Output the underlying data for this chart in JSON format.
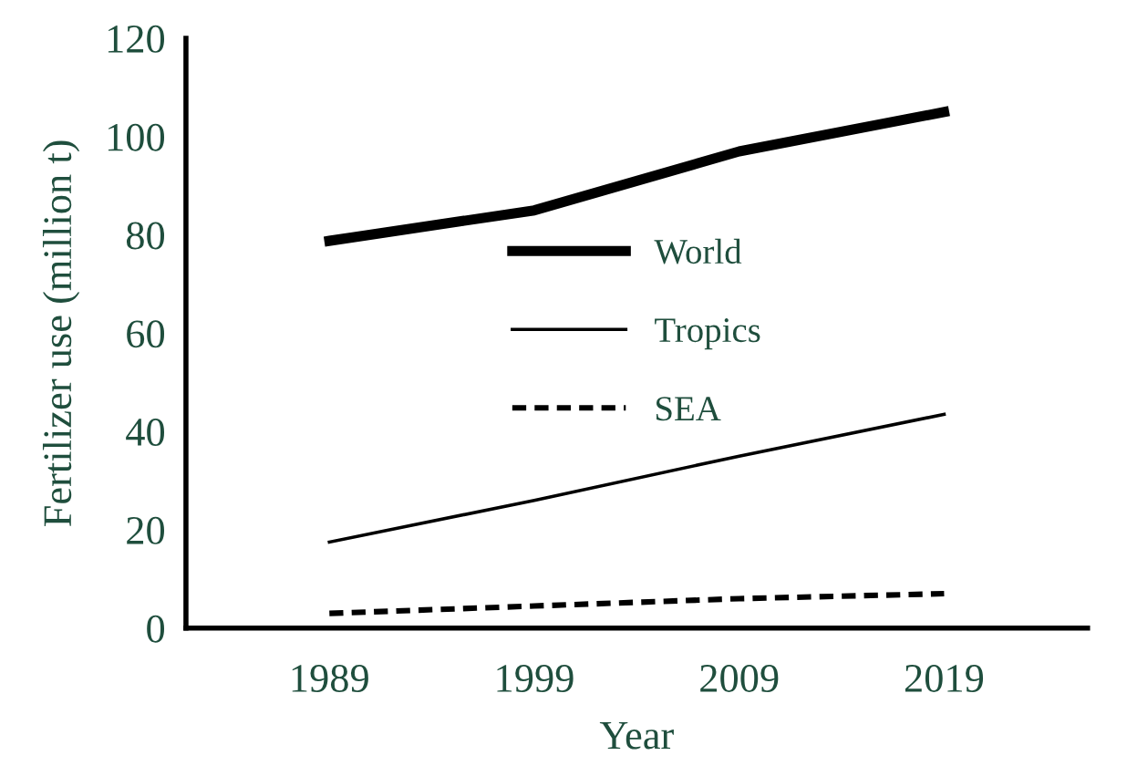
{
  "chart_data": {
    "type": "line",
    "xlabel": "Year",
    "ylabel": "Fertilizer use (million t)",
    "categories": [
      "1989",
      "1999",
      "2009",
      "2019"
    ],
    "series": [
      {
        "name": "World",
        "color": "#000000",
        "values": [
          78.8,
          85,
          97,
          105
        ],
        "line_style": "solid"
      },
      {
        "name": "Tropics",
        "color": "#000000",
        "values": [
          17.5,
          26,
          35,
          43.5
        ],
        "line_style": "solid"
      },
      {
        "name": "SEA",
        "color": "#000000",
        "values": [
          3,
          4.5,
          6,
          7
        ],
        "line_style": "dashed"
      }
    ],
    "ylim": [
      0,
      120
    ],
    "yticks": [
      0,
      20,
      40,
      60,
      80,
      100,
      120
    ],
    "grid": false,
    "legend": "center",
    "marker": "none"
  }
}
